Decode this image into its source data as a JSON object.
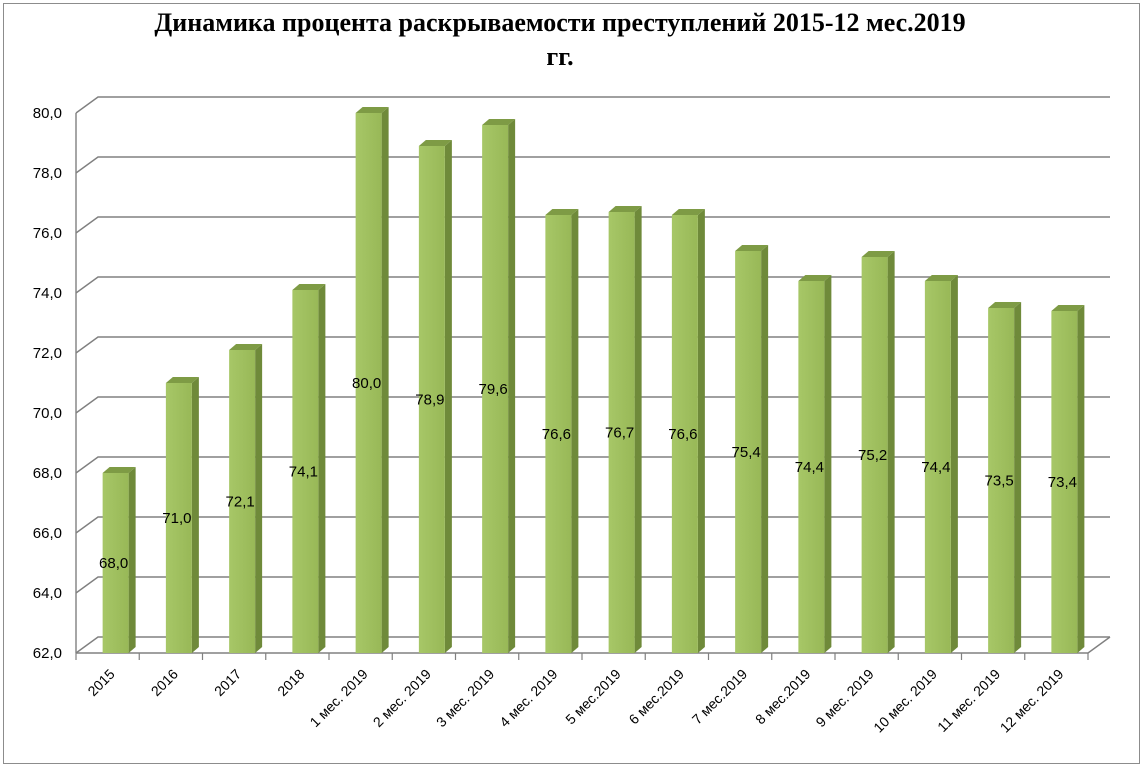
{
  "chart_data": {
    "type": "bar",
    "title_line1": "Динамика процента раскрываемости преступлений 2015-12 мес.2019",
    "title_line2": "гг.",
    "categories": [
      "2015",
      "2016",
      "2017",
      "2018",
      "1 мес. 2019",
      "2 мес. 2019",
      "3 мес. 2019",
      "4 мес. 2019",
      "5 мес.2019",
      "6 мес.2019",
      "7 мес.2019",
      "8 мес.2019",
      "9 мес. 2019",
      "10 мес. 2019",
      "11 мес. 2019",
      "12 мес. 2019"
    ],
    "values": [
      68.0,
      71.0,
      72.1,
      74.1,
      80.0,
      78.9,
      79.6,
      76.6,
      76.7,
      76.6,
      75.4,
      74.4,
      75.2,
      74.4,
      73.5,
      73.4
    ],
    "data_labels": [
      "68,0",
      "71,0",
      "72,1",
      "74,1",
      "80,0",
      "78,9",
      "79,6",
      "76,6",
      "76,7",
      "76,6",
      "75,4",
      "74,4",
      "75,2",
      "74,4",
      "73,5",
      "73,4"
    ],
    "y_ticks": [
      "62,0",
      "64,0",
      "66,0",
      "68,0",
      "70,0",
      "72,0",
      "74,0",
      "76,0",
      "78,0",
      "80,0"
    ],
    "ylim": [
      62,
      80
    ],
    "grid": true,
    "legend": "none",
    "bar_color": "#9bbb59"
  }
}
